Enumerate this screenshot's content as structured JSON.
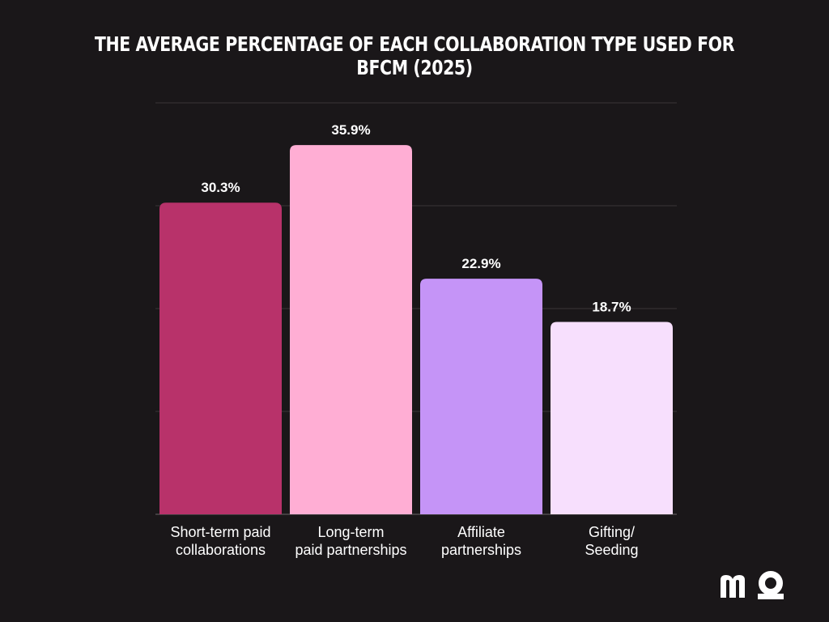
{
  "chart_data": {
    "type": "bar",
    "title": "THE AVERAGE PERCENTAGE OF EACH COLLABORATION TYPE USED FOR BFCM (2025)",
    "categories": [
      [
        "Short-term paid",
        "collaborations"
      ],
      [
        "Long-term",
        "paid partnerships"
      ],
      [
        "Affiliate",
        "partnerships"
      ],
      [
        "Gifting/",
        "Seeding"
      ]
    ],
    "values": [
      30.3,
      35.9,
      22.9,
      18.7
    ],
    "value_labels": [
      "30.3%",
      "35.9%",
      "22.9%",
      "18.7%"
    ],
    "colors": [
      "#b8326a",
      "#ffaed4",
      "#c594f7",
      "#f7dffd"
    ],
    "ylim": [
      0,
      40
    ],
    "grid": true,
    "xlabel": "",
    "ylabel": ""
  },
  "brand": {
    "logo_icon": "mo-logo-icon",
    "text_color": "#ffffff",
    "grid_color": "#3a3538"
  }
}
